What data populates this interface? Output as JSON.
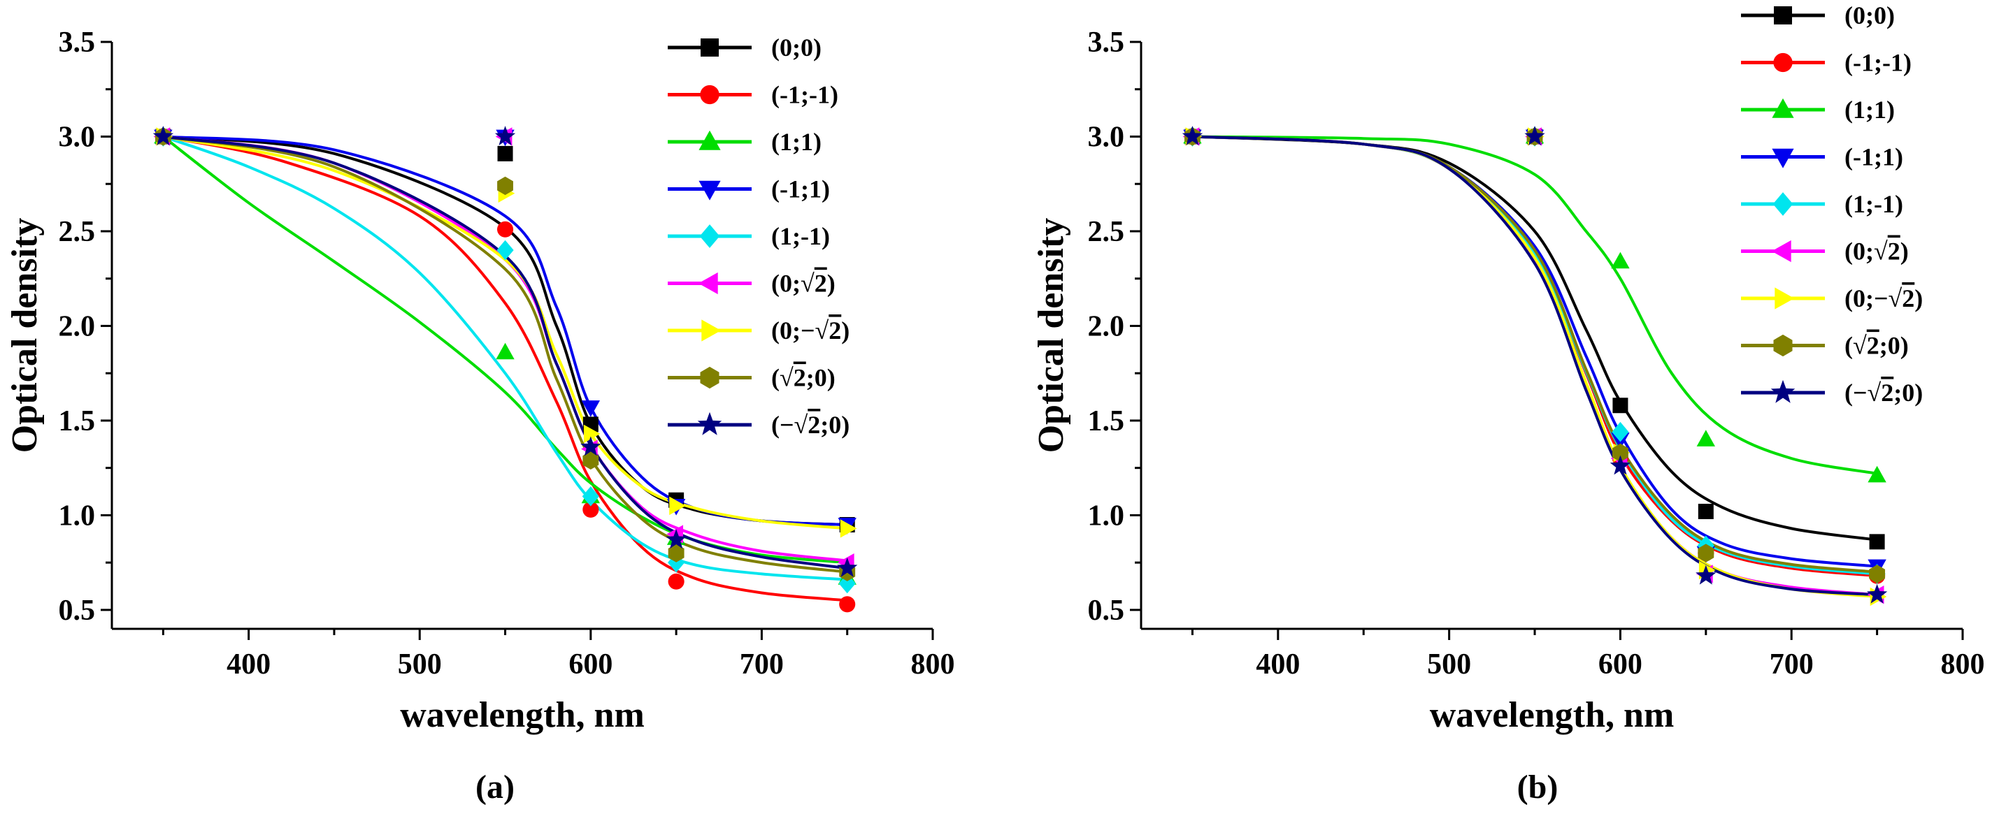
{
  "figure": {
    "panel_labels": [
      "(a)",
      "(b)"
    ]
  },
  "chart_data": [
    {
      "type": "line",
      "panel": "(a)",
      "xlabel": "wavelength, nm",
      "ylabel": "Optical density",
      "xlim": [
        320,
        800
      ],
      "ylim": [
        0.4,
        3.5
      ],
      "xticks": [
        400,
        500,
        600,
        700,
        800
      ],
      "xtick_labels": [
        "400",
        "500",
        "600",
        "700",
        "800"
      ],
      "yticks": [
        0.5,
        1.0,
        1.5,
        2.0,
        2.5,
        3.0,
        3.5
      ],
      "ytick_labels": [
        "0.5",
        "1.0",
        "1.5",
        "2.0",
        "2.5",
        "3.0",
        "3.5"
      ],
      "legend_position": "top-right",
      "x": [
        350,
        550,
        600,
        650,
        750
      ],
      "series": [
        {
          "name": "(0;0)",
          "label_main": "(0;0)",
          "label_tail": "",
          "sqrt": false,
          "color": "#000000",
          "marker": "square",
          "values": [
            3.0,
            2.91,
            1.48,
            1.08,
            0.95
          ],
          "curve": [
            [
              350,
              3.0
            ],
            [
              450,
              2.91
            ],
            [
              550,
              2.52
            ],
            [
              580,
              2.0
            ],
            [
              600,
              1.48
            ],
            [
              630,
              1.15
            ],
            [
              660,
              1.03
            ],
            [
              700,
              0.97
            ],
            [
              750,
              0.95
            ]
          ]
        },
        {
          "name": "(-1;-1)",
          "label_main": "(-1;-1)",
          "label_tail": "",
          "sqrt": false,
          "color": "#ff0000",
          "marker": "circle",
          "values": [
            3.0,
            2.51,
            1.03,
            0.65,
            0.53
          ],
          "curve": [
            [
              350,
              3.0
            ],
            [
              420,
              2.87
            ],
            [
              500,
              2.58
            ],
            [
              550,
              2.12
            ],
            [
              580,
              1.6
            ],
            [
              600,
              1.18
            ],
            [
              630,
              0.83
            ],
            [
              660,
              0.67
            ],
            [
              700,
              0.59
            ],
            [
              750,
              0.55
            ]
          ]
        },
        {
          "name": "(1;1)",
          "label_main": "(1;1)",
          "label_tail": "",
          "sqrt": false,
          "color": "#00dd00",
          "marker": "triangle-up",
          "values": [
            3.0,
            1.86,
            1.1,
            0.88,
            0.67
          ],
          "curve": [
            [
              350,
              3.0
            ],
            [
              400,
              2.65
            ],
            [
              450,
              2.34
            ],
            [
              500,
              2.02
            ],
            [
              550,
              1.65
            ],
            [
              580,
              1.35
            ],
            [
              600,
              1.17
            ],
            [
              630,
              0.99
            ],
            [
              660,
              0.87
            ],
            [
              700,
              0.79
            ],
            [
              750,
              0.75
            ]
          ]
        },
        {
          "name": "(-1;1)",
          "label_main": "(-1;1)",
          "label_tail": "",
          "sqrt": false,
          "color": "#0000ee",
          "marker": "triangle-down",
          "values": [
            3.0,
            3.0,
            1.57,
            1.05,
            0.95
          ],
          "curve": [
            [
              350,
              3.0
            ],
            [
              450,
              2.93
            ],
            [
              550,
              2.58
            ],
            [
              580,
              2.1
            ],
            [
              600,
              1.57
            ],
            [
              630,
              1.2
            ],
            [
              660,
              1.04
            ],
            [
              700,
              0.97
            ],
            [
              750,
              0.95
            ]
          ]
        },
        {
          "name": "(1;-1)",
          "label_main": "(1;-1)",
          "label_tail": "",
          "sqrt": false,
          "color": "#00e5ee",
          "marker": "diamond",
          "values": [
            3.0,
            2.4,
            1.1,
            0.75,
            0.64
          ],
          "curve": [
            [
              350,
              3.0
            ],
            [
              400,
              2.84
            ],
            [
              450,
              2.62
            ],
            [
              500,
              2.28
            ],
            [
              550,
              1.75
            ],
            [
              580,
              1.33
            ],
            [
              600,
              1.08
            ],
            [
              630,
              0.85
            ],
            [
              660,
              0.74
            ],
            [
              700,
              0.69
            ],
            [
              750,
              0.66
            ]
          ]
        },
        {
          "name": "(0;√2)",
          "label_main": "(0;",
          "label_tail": "2)",
          "sqrt": true,
          "color": "#ff00ff",
          "marker": "triangle-left",
          "values": [
            3.0,
            3.0,
            1.35,
            0.9,
            0.75
          ],
          "curve": [
            [
              350,
              3.0
            ],
            [
              450,
              2.86
            ],
            [
              550,
              2.35
            ],
            [
              580,
              1.8
            ],
            [
              600,
              1.37
            ],
            [
              630,
              1.04
            ],
            [
              660,
              0.9
            ],
            [
              700,
              0.81
            ],
            [
              750,
              0.76
            ]
          ]
        },
        {
          "name": "(0;−√2)",
          "label_main": "(0;−",
          "label_tail": "2)",
          "sqrt": true,
          "color": "#ffff00",
          "marker": "triangle-right",
          "values": [
            3.0,
            2.7,
            1.43,
            1.05,
            0.93
          ],
          "curve": [
            [
              350,
              3.0
            ],
            [
              450,
              2.82
            ],
            [
              550,
              2.35
            ],
            [
              580,
              1.85
            ],
            [
              600,
              1.43
            ],
            [
              630,
              1.15
            ],
            [
              660,
              1.04
            ],
            [
              700,
              0.97
            ],
            [
              750,
              0.93
            ]
          ]
        },
        {
          "name": "(√2;0)",
          "label_main": "(",
          "label_tail": "2;0)",
          "sqrt": true,
          "color": "#808000",
          "marker": "hexagon",
          "values": [
            3.0,
            2.74,
            1.29,
            0.8,
            0.7
          ],
          "curve": [
            [
              350,
              3.0
            ],
            [
              450,
              2.84
            ],
            [
              550,
              2.3
            ],
            [
              580,
              1.72
            ],
            [
              600,
              1.3
            ],
            [
              630,
              0.98
            ],
            [
              660,
              0.83
            ],
            [
              700,
              0.75
            ],
            [
              750,
              0.7
            ]
          ]
        },
        {
          "name": "(−√2;0)",
          "label_main": "(−",
          "label_tail": "2;0)",
          "sqrt": true,
          "color": "#000080",
          "marker": "star",
          "values": [
            3.0,
            3.0,
            1.36,
            0.87,
            0.72
          ],
          "curve": [
            [
              350,
              3.0
            ],
            [
              450,
              2.86
            ],
            [
              550,
              2.37
            ],
            [
              580,
              1.8
            ],
            [
              600,
              1.37
            ],
            [
              630,
              1.03
            ],
            [
              660,
              0.87
            ],
            [
              700,
              0.78
            ],
            [
              750,
              0.72
            ]
          ]
        }
      ]
    },
    {
      "type": "line",
      "panel": "(b)",
      "xlabel": "wavelength, nm",
      "ylabel": "Optical density",
      "xlim": [
        320,
        800
      ],
      "ylim": [
        0.4,
        3.5
      ],
      "xticks": [
        400,
        500,
        600,
        700,
        800
      ],
      "xtick_labels": [
        "400",
        "500",
        "600",
        "700",
        "800"
      ],
      "yticks": [
        0.5,
        1.0,
        1.5,
        2.0,
        2.5,
        3.0,
        3.5
      ],
      "ytick_labels": [
        "0.5",
        "1.0",
        "1.5",
        "2.0",
        "2.5",
        "3.0",
        "3.5"
      ],
      "legend_position": "top-right",
      "x": [
        350,
        550,
        600,
        650,
        750
      ],
      "series": [
        {
          "name": "(0;0)",
          "label_main": "(0;0)",
          "label_tail": "",
          "sqrt": false,
          "color": "#000000",
          "marker": "square",
          "values": [
            3.0,
            3.0,
            1.58,
            1.02,
            0.86
          ],
          "curve": [
            [
              350,
              3.0
            ],
            [
              450,
              2.96
            ],
            [
              500,
              2.86
            ],
            [
              550,
              2.5
            ],
            [
              580,
              1.98
            ],
            [
              600,
              1.6
            ],
            [
              630,
              1.23
            ],
            [
              660,
              1.04
            ],
            [
              700,
              0.93
            ],
            [
              750,
              0.87
            ]
          ]
        },
        {
          "name": "(-1;-1)",
          "label_main": "(-1;-1)",
          "label_tail": "",
          "sqrt": false,
          "color": "#ff0000",
          "marker": "circle",
          "values": [
            3.0,
            3.0,
            1.3,
            0.8,
            0.68
          ],
          "curve": [
            [
              350,
              3.0
            ],
            [
              450,
              2.96
            ],
            [
              500,
              2.83
            ],
            [
              550,
              2.38
            ],
            [
              580,
              1.75
            ],
            [
              600,
              1.32
            ],
            [
              630,
              0.97
            ],
            [
              660,
              0.8
            ],
            [
              700,
              0.72
            ],
            [
              750,
              0.68
            ]
          ]
        },
        {
          "name": "(1;1)",
          "label_main": "(1;1)",
          "label_tail": "",
          "sqrt": false,
          "color": "#00dd00",
          "marker": "triangle-up",
          "values": [
            3.0,
            3.0,
            2.34,
            1.4,
            1.21
          ],
          "curve": [
            [
              350,
              3.0
            ],
            [
              450,
              2.99
            ],
            [
              500,
              2.96
            ],
            [
              550,
              2.8
            ],
            [
              580,
              2.5
            ],
            [
              600,
              2.25
            ],
            [
              630,
              1.75
            ],
            [
              660,
              1.46
            ],
            [
              700,
              1.3
            ],
            [
              750,
              1.22
            ]
          ]
        },
        {
          "name": "(-1;1)",
          "label_main": "(-1;1)",
          "label_tail": "",
          "sqrt": false,
          "color": "#0000ee",
          "marker": "triangle-down",
          "values": [
            3.0,
            3.0,
            1.4,
            0.8,
            0.73
          ],
          "curve": [
            [
              350,
              3.0
            ],
            [
              450,
              2.96
            ],
            [
              500,
              2.84
            ],
            [
              550,
              2.42
            ],
            [
              580,
              1.84
            ],
            [
              600,
              1.43
            ],
            [
              630,
              1.03
            ],
            [
              660,
              0.85
            ],
            [
              700,
              0.77
            ],
            [
              750,
              0.73
            ]
          ]
        },
        {
          "name": "(1;-1)",
          "label_main": "(1;-1)",
          "label_tail": "",
          "sqrt": false,
          "color": "#00e5ee",
          "marker": "diamond",
          "values": [
            3.0,
            3.0,
            1.44,
            0.84,
            0.69
          ],
          "curve": [
            [
              350,
              3.0
            ],
            [
              450,
              2.96
            ],
            [
              500,
              2.83
            ],
            [
              550,
              2.38
            ],
            [
              580,
              1.76
            ],
            [
              600,
              1.35
            ],
            [
              630,
              0.98
            ],
            [
              660,
              0.81
            ],
            [
              700,
              0.73
            ],
            [
              750,
              0.69
            ]
          ]
        },
        {
          "name": "(0;√2)",
          "label_main": "(0;",
          "label_tail": "2)",
          "sqrt": true,
          "color": "#ff00ff",
          "marker": "triangle-left",
          "values": [
            3.0,
            3.0,
            1.3,
            0.69,
            0.58
          ],
          "curve": [
            [
              350,
              3.0
            ],
            [
              450,
              2.96
            ],
            [
              500,
              2.83
            ],
            [
              550,
              2.35
            ],
            [
              580,
              1.68
            ],
            [
              600,
              1.25
            ],
            [
              630,
              0.88
            ],
            [
              660,
              0.7
            ],
            [
              700,
              0.62
            ],
            [
              750,
              0.58
            ]
          ]
        },
        {
          "name": "(0;−√2)",
          "label_main": "(0;−",
          "label_tail": "2)",
          "sqrt": true,
          "color": "#ffff00",
          "marker": "triangle-right",
          "values": [
            3.0,
            3.0,
            1.33,
            0.71,
            0.57
          ],
          "curve": [
            [
              350,
              3.0
            ],
            [
              450,
              2.96
            ],
            [
              500,
              2.83
            ],
            [
              550,
              2.36
            ],
            [
              580,
              1.7
            ],
            [
              600,
              1.26
            ],
            [
              630,
              0.88
            ],
            [
              660,
              0.7
            ],
            [
              700,
              0.61
            ],
            [
              750,
              0.57
            ]
          ]
        },
        {
          "name": "(√2;0)",
          "label_main": "(",
          "label_tail": "2;0)",
          "sqrt": true,
          "color": "#808000",
          "marker": "hexagon",
          "values": [
            3.0,
            3.0,
            1.33,
            0.8,
            0.69
          ],
          "curve": [
            [
              350,
              3.0
            ],
            [
              450,
              2.96
            ],
            [
              500,
              2.84
            ],
            [
              550,
              2.4
            ],
            [
              580,
              1.77
            ],
            [
              600,
              1.36
            ],
            [
              630,
              1.0
            ],
            [
              660,
              0.82
            ],
            [
              700,
              0.74
            ],
            [
              750,
              0.7
            ]
          ]
        },
        {
          "name": "(−√2;0)",
          "label_main": "(−",
          "label_tail": "2;0)",
          "sqrt": true,
          "color": "#000080",
          "marker": "star",
          "values": [
            3.0,
            3.0,
            1.26,
            0.68,
            0.58
          ],
          "curve": [
            [
              350,
              3.0
            ],
            [
              450,
              2.96
            ],
            [
              500,
              2.83
            ],
            [
              550,
              2.33
            ],
            [
              580,
              1.66
            ],
            [
              600,
              1.24
            ],
            [
              630,
              0.87
            ],
            [
              660,
              0.69
            ],
            [
              700,
              0.61
            ],
            [
              750,
              0.58
            ]
          ]
        }
      ]
    }
  ]
}
